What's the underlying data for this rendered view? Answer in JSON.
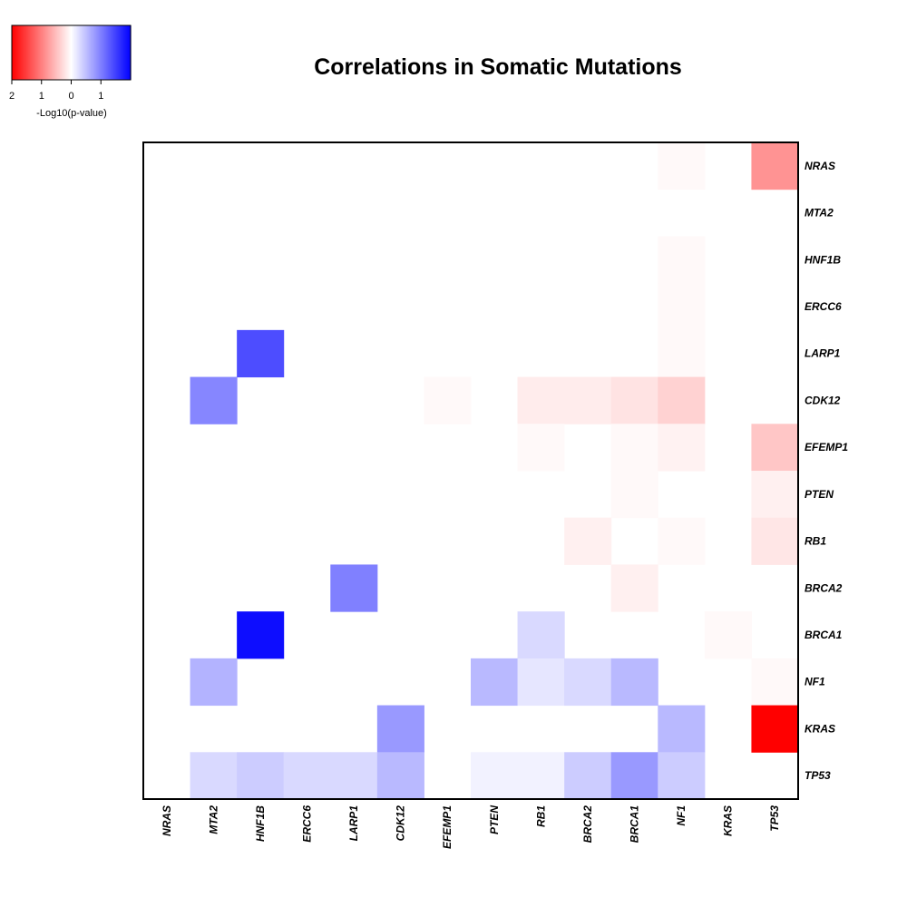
{
  "chart_data": {
    "type": "heatmap",
    "title": "Correlations in Somatic Mutations",
    "genes": [
      "NRAS",
      "MTA2",
      "HNF1B",
      "ERCC6",
      "LARP1",
      "CDK12",
      "EFEMP1",
      "PTEN",
      "RB1",
      "BRCA2",
      "BRCA1",
      "NF1",
      "KRAS",
      "TP53"
    ],
    "row_order": [
      "NRAS",
      "MTA2",
      "HNF1B",
      "ERCC6",
      "LARP1",
      "CDK12",
      "EFEMP1",
      "PTEN",
      "RB1",
      "BRCA2",
      "BRCA1",
      "NF1",
      "KRAS",
      "TP53"
    ],
    "col_order": [
      "NRAS",
      "MTA2",
      "HNF1B",
      "ERCC6",
      "LARP1",
      "CDK12",
      "EFEMP1",
      "PTEN",
      "RB1",
      "BRCA2",
      "BRCA1",
      "NF1",
      "KRAS",
      "TP53"
    ],
    "value_description": "signed -Log10(p-value); negative = red (co-occurrence), positive = blue",
    "values": [
      [
        0,
        0,
        0,
        0,
        0,
        0,
        0,
        0,
        0,
        0,
        0,
        -0.05,
        0,
        -0.85
      ],
      [
        0,
        0,
        0,
        0,
        0,
        0,
        0,
        0,
        0,
        0,
        0,
        0,
        0,
        0
      ],
      [
        0,
        0,
        0,
        0,
        0,
        0,
        0,
        0,
        0,
        0,
        0,
        -0.05,
        0,
        0
      ],
      [
        0,
        0,
        0,
        0,
        0,
        0,
        0,
        0,
        0,
        0,
        0,
        -0.05,
        0,
        0
      ],
      [
        0,
        0,
        1.4,
        0,
        0,
        0,
        0,
        0,
        0,
        0,
        0,
        -0.05,
        0,
        0
      ],
      [
        0,
        0.95,
        0,
        0,
        0,
        0,
        -0.05,
        0,
        -0.15,
        -0.15,
        -0.22,
        -0.35,
        0,
        0
      ],
      [
        0,
        0,
        0,
        0,
        0,
        0,
        0,
        0,
        -0.05,
        0,
        -0.05,
        -0.1,
        0,
        -0.45
      ],
      [
        0,
        0,
        0,
        0,
        0,
        0,
        0,
        0,
        0,
        0,
        -0.05,
        0,
        0,
        -0.12
      ],
      [
        0,
        0,
        0,
        0,
        0,
        0,
        0,
        0,
        0,
        -0.12,
        0,
        -0.05,
        0,
        -0.2
      ],
      [
        0,
        0,
        0,
        0,
        1.0,
        0,
        0,
        0,
        0,
        0,
        -0.12,
        0,
        0,
        0
      ],
      [
        0,
        0,
        1.9,
        0,
        0,
        0,
        0,
        0,
        0.3,
        0,
        0,
        0,
        -0.05,
        0
      ],
      [
        0,
        0.6,
        0,
        0,
        0,
        0,
        0,
        0.55,
        0.2,
        0.3,
        0.55,
        0,
        0,
        -0.05
      ],
      [
        0,
        0,
        0,
        0,
        0,
        0.8,
        0,
        0,
        0,
        0,
        0,
        0.55,
        0,
        -2.0
      ],
      [
        0,
        0.3,
        0.4,
        0.3,
        0.3,
        0.55,
        0,
        0.1,
        0.1,
        0.4,
        0.8,
        0.4,
        0,
        0
      ]
    ],
    "legend": {
      "title": "-Log10(p-value)",
      "tick_labels": [
        "2",
        "1",
        "0",
        "1"
      ],
      "range": [
        -2,
        2
      ],
      "colors": {
        "negative": "#ff0000",
        "mid": "#ffffff",
        "positive": "#0000ff"
      }
    }
  }
}
